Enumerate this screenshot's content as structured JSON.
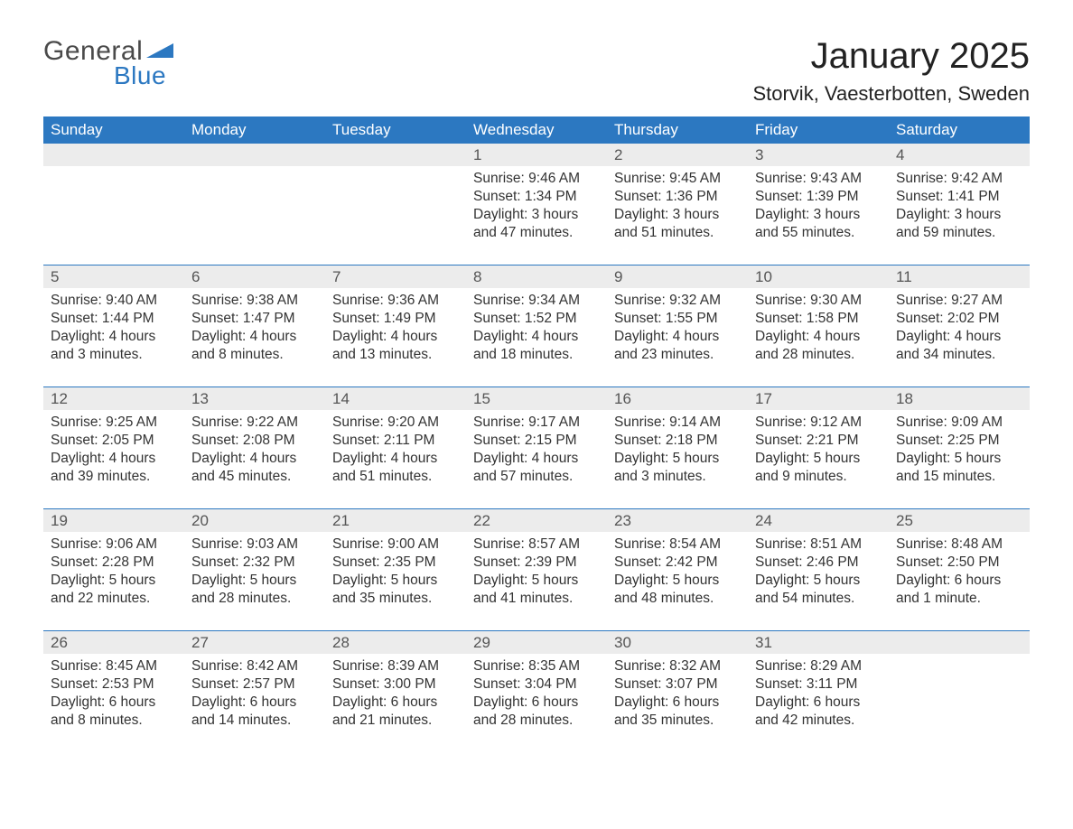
{
  "brand": {
    "word1": "General",
    "word2": "Blue",
    "color_word1": "#4a4a4a",
    "color_word2": "#2c78c1",
    "triangle_color": "#2c78c1"
  },
  "title": {
    "month_year": "January 2025",
    "location": "Storvik, Vaesterbotten, Sweden",
    "title_fontsize": 40,
    "location_fontsize": 22,
    "text_color": "#222222"
  },
  "calendar": {
    "header_bg": "#2c78c1",
    "header_text_color": "#ffffff",
    "week_separator_color": "#2c78c1",
    "daynum_bg": "#ececec",
    "daynum_color": "#555555",
    "body_text_color": "#333333",
    "background_color": "#ffffff",
    "columns": [
      "Sunday",
      "Monday",
      "Tuesday",
      "Wednesday",
      "Thursday",
      "Friday",
      "Saturday"
    ],
    "weeks": [
      [
        {
          "day": "",
          "sunrise": "",
          "sunset": "",
          "daylight": ""
        },
        {
          "day": "",
          "sunrise": "",
          "sunset": "",
          "daylight": ""
        },
        {
          "day": "",
          "sunrise": "",
          "sunset": "",
          "daylight": ""
        },
        {
          "day": "1",
          "sunrise": "Sunrise: 9:46 AM",
          "sunset": "Sunset: 1:34 PM",
          "daylight": "Daylight: 3 hours and 47 minutes."
        },
        {
          "day": "2",
          "sunrise": "Sunrise: 9:45 AM",
          "sunset": "Sunset: 1:36 PM",
          "daylight": "Daylight: 3 hours and 51 minutes."
        },
        {
          "day": "3",
          "sunrise": "Sunrise: 9:43 AM",
          "sunset": "Sunset: 1:39 PM",
          "daylight": "Daylight: 3 hours and 55 minutes."
        },
        {
          "day": "4",
          "sunrise": "Sunrise: 9:42 AM",
          "sunset": "Sunset: 1:41 PM",
          "daylight": "Daylight: 3 hours and 59 minutes."
        }
      ],
      [
        {
          "day": "5",
          "sunrise": "Sunrise: 9:40 AM",
          "sunset": "Sunset: 1:44 PM",
          "daylight": "Daylight: 4 hours and 3 minutes."
        },
        {
          "day": "6",
          "sunrise": "Sunrise: 9:38 AM",
          "sunset": "Sunset: 1:47 PM",
          "daylight": "Daylight: 4 hours and 8 minutes."
        },
        {
          "day": "7",
          "sunrise": "Sunrise: 9:36 AM",
          "sunset": "Sunset: 1:49 PM",
          "daylight": "Daylight: 4 hours and 13 minutes."
        },
        {
          "day": "8",
          "sunrise": "Sunrise: 9:34 AM",
          "sunset": "Sunset: 1:52 PM",
          "daylight": "Daylight: 4 hours and 18 minutes."
        },
        {
          "day": "9",
          "sunrise": "Sunrise: 9:32 AM",
          "sunset": "Sunset: 1:55 PM",
          "daylight": "Daylight: 4 hours and 23 minutes."
        },
        {
          "day": "10",
          "sunrise": "Sunrise: 9:30 AM",
          "sunset": "Sunset: 1:58 PM",
          "daylight": "Daylight: 4 hours and 28 minutes."
        },
        {
          "day": "11",
          "sunrise": "Sunrise: 9:27 AM",
          "sunset": "Sunset: 2:02 PM",
          "daylight": "Daylight: 4 hours and 34 minutes."
        }
      ],
      [
        {
          "day": "12",
          "sunrise": "Sunrise: 9:25 AM",
          "sunset": "Sunset: 2:05 PM",
          "daylight": "Daylight: 4 hours and 39 minutes."
        },
        {
          "day": "13",
          "sunrise": "Sunrise: 9:22 AM",
          "sunset": "Sunset: 2:08 PM",
          "daylight": "Daylight: 4 hours and 45 minutes."
        },
        {
          "day": "14",
          "sunrise": "Sunrise: 9:20 AM",
          "sunset": "Sunset: 2:11 PM",
          "daylight": "Daylight: 4 hours and 51 minutes."
        },
        {
          "day": "15",
          "sunrise": "Sunrise: 9:17 AM",
          "sunset": "Sunset: 2:15 PM",
          "daylight": "Daylight: 4 hours and 57 minutes."
        },
        {
          "day": "16",
          "sunrise": "Sunrise: 9:14 AM",
          "sunset": "Sunset: 2:18 PM",
          "daylight": "Daylight: 5 hours and 3 minutes."
        },
        {
          "day": "17",
          "sunrise": "Sunrise: 9:12 AM",
          "sunset": "Sunset: 2:21 PM",
          "daylight": "Daylight: 5 hours and 9 minutes."
        },
        {
          "day": "18",
          "sunrise": "Sunrise: 9:09 AM",
          "sunset": "Sunset: 2:25 PM",
          "daylight": "Daylight: 5 hours and 15 minutes."
        }
      ],
      [
        {
          "day": "19",
          "sunrise": "Sunrise: 9:06 AM",
          "sunset": "Sunset: 2:28 PM",
          "daylight": "Daylight: 5 hours and 22 minutes."
        },
        {
          "day": "20",
          "sunrise": "Sunrise: 9:03 AM",
          "sunset": "Sunset: 2:32 PM",
          "daylight": "Daylight: 5 hours and 28 minutes."
        },
        {
          "day": "21",
          "sunrise": "Sunrise: 9:00 AM",
          "sunset": "Sunset: 2:35 PM",
          "daylight": "Daylight: 5 hours and 35 minutes."
        },
        {
          "day": "22",
          "sunrise": "Sunrise: 8:57 AM",
          "sunset": "Sunset: 2:39 PM",
          "daylight": "Daylight: 5 hours and 41 minutes."
        },
        {
          "day": "23",
          "sunrise": "Sunrise: 8:54 AM",
          "sunset": "Sunset: 2:42 PM",
          "daylight": "Daylight: 5 hours and 48 minutes."
        },
        {
          "day": "24",
          "sunrise": "Sunrise: 8:51 AM",
          "sunset": "Sunset: 2:46 PM",
          "daylight": "Daylight: 5 hours and 54 minutes."
        },
        {
          "day": "25",
          "sunrise": "Sunrise: 8:48 AM",
          "sunset": "Sunset: 2:50 PM",
          "daylight": "Daylight: 6 hours and 1 minute."
        }
      ],
      [
        {
          "day": "26",
          "sunrise": "Sunrise: 8:45 AM",
          "sunset": "Sunset: 2:53 PM",
          "daylight": "Daylight: 6 hours and 8 minutes."
        },
        {
          "day": "27",
          "sunrise": "Sunrise: 8:42 AM",
          "sunset": "Sunset: 2:57 PM",
          "daylight": "Daylight: 6 hours and 14 minutes."
        },
        {
          "day": "28",
          "sunrise": "Sunrise: 8:39 AM",
          "sunset": "Sunset: 3:00 PM",
          "daylight": "Daylight: 6 hours and 21 minutes."
        },
        {
          "day": "29",
          "sunrise": "Sunrise: 8:35 AM",
          "sunset": "Sunset: 3:04 PM",
          "daylight": "Daylight: 6 hours and 28 minutes."
        },
        {
          "day": "30",
          "sunrise": "Sunrise: 8:32 AM",
          "sunset": "Sunset: 3:07 PM",
          "daylight": "Daylight: 6 hours and 35 minutes."
        },
        {
          "day": "31",
          "sunrise": "Sunrise: 8:29 AM",
          "sunset": "Sunset: 3:11 PM",
          "daylight": "Daylight: 6 hours and 42 minutes."
        },
        {
          "day": "",
          "sunrise": "",
          "sunset": "",
          "daylight": ""
        }
      ]
    ]
  }
}
